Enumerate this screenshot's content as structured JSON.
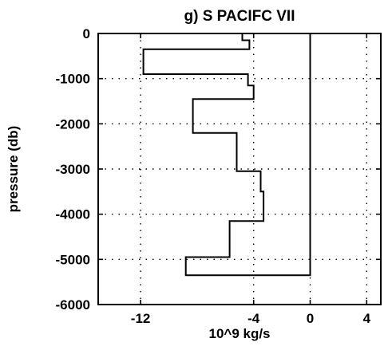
{
  "chart_data": {
    "type": "line",
    "title": "g)  S PACIFC VII",
    "xlabel": "10^9 kg/s",
    "ylabel": "pressure (db)",
    "xlim": [
      -15,
      5
    ],
    "ylim": [
      -6000,
      0
    ],
    "x_ticks": [
      {
        "value": -12,
        "label": "-12"
      },
      {
        "value": -4,
        "label": "-4"
      },
      {
        "value": 0,
        "label": "0"
      },
      {
        "value": 4,
        "label": "4"
      }
    ],
    "y_ticks": [
      {
        "value": 0,
        "label": "0"
      },
      {
        "value": -1000,
        "label": "-1000"
      },
      {
        "value": -2000,
        "label": "-2000"
      },
      {
        "value": -3000,
        "label": "-3000"
      },
      {
        "value": -4000,
        "label": "-4000"
      },
      {
        "value": -5000,
        "label": "-5000"
      },
      {
        "value": -6000,
        "label": "-6000"
      }
    ],
    "grid": true,
    "series": [
      {
        "style": "step",
        "points": [
          {
            "x": -4.8,
            "y": 0
          },
          {
            "x": -4.8,
            "y": -150
          },
          {
            "x": -4.3,
            "y": -150
          },
          {
            "x": -4.3,
            "y": -350
          },
          {
            "x": -11.8,
            "y": -350
          },
          {
            "x": -11.8,
            "y": -900
          },
          {
            "x": -4.4,
            "y": -900
          },
          {
            "x": -4.4,
            "y": -1150
          },
          {
            "x": -4.0,
            "y": -1150
          },
          {
            "x": -4.0,
            "y": -1450
          },
          {
            "x": -8.3,
            "y": -1450
          },
          {
            "x": -8.3,
            "y": -2200
          },
          {
            "x": -5.2,
            "y": -2200
          },
          {
            "x": -5.2,
            "y": -3050
          },
          {
            "x": -3.5,
            "y": -3050
          },
          {
            "x": -3.5,
            "y": -3500
          },
          {
            "x": -3.3,
            "y": -3500
          },
          {
            "x": -3.3,
            "y": -4150
          },
          {
            "x": -5.7,
            "y": -4150
          },
          {
            "x": -5.7,
            "y": -4950
          },
          {
            "x": -8.8,
            "y": -4950
          },
          {
            "x": -8.8,
            "y": -5350
          },
          {
            "x": 0,
            "y": -5350
          },
          {
            "x": 0,
            "y": 0
          }
        ]
      }
    ]
  }
}
